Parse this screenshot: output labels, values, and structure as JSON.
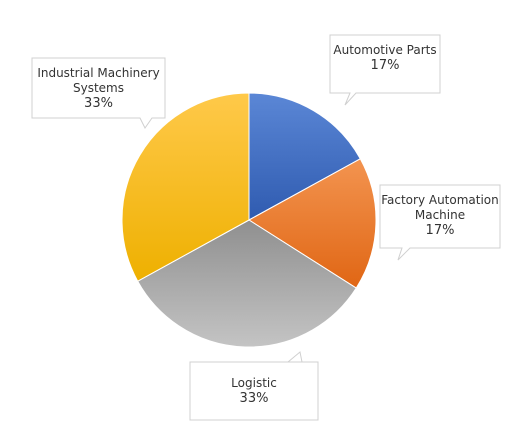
{
  "chart_data": {
    "type": "pie",
    "categories": [
      "Automotive Parts",
      "Factory Automation Machine",
      "Logistic",
      "Industrial Machinery Systems"
    ],
    "values": [
      17,
      17,
      33,
      33
    ],
    "value_labels": [
      "17%",
      "17%",
      "33%",
      "33%"
    ],
    "colors": [
      "#4472c4",
      "#ed7d31",
      "#a5a5a5",
      "#ffc000"
    ]
  }
}
